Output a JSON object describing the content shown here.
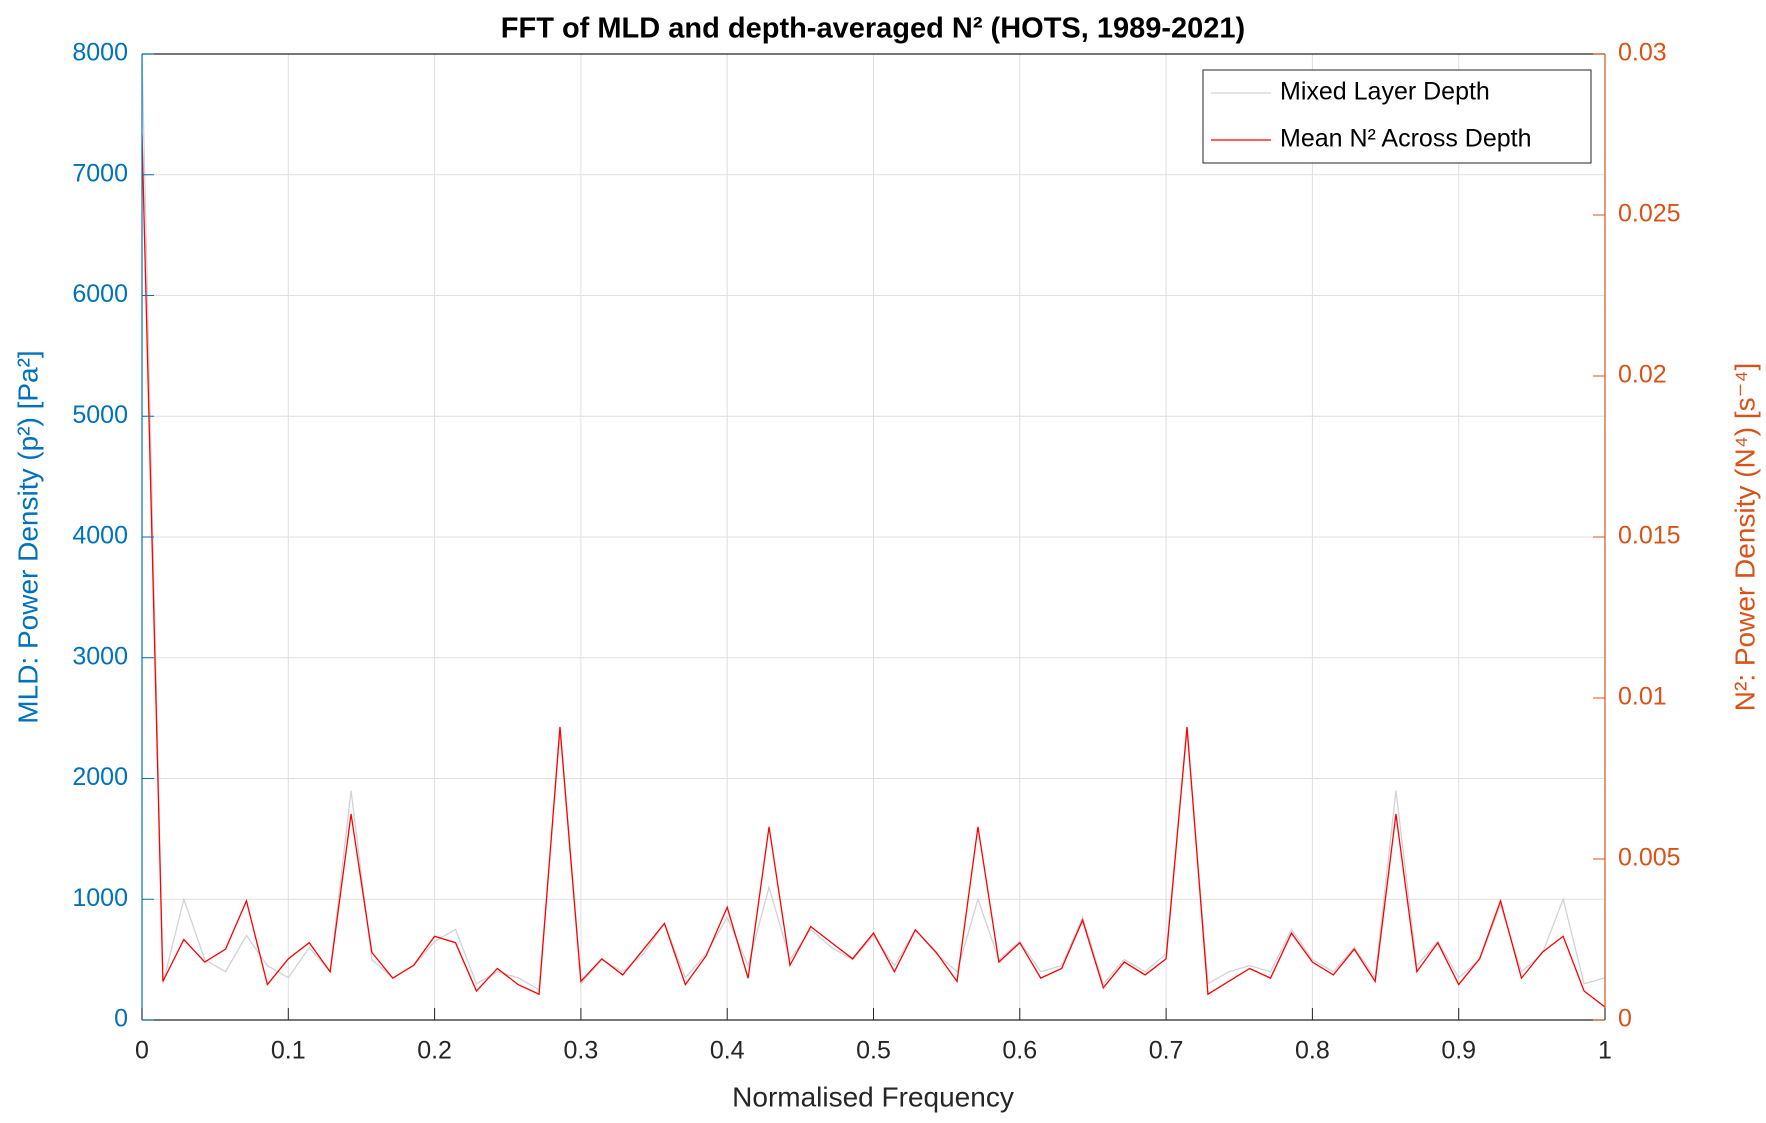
{
  "chart_data": {
    "type": "line",
    "title": "FFT of MLD and depth-averaged N² (HOTS, 1989-2021)",
    "x_label": "Normalised Frequency",
    "y_label": "MLD: Power Density (p²) [Pa²]",
    "y2_label": "N²: Power Density (N⁴) [s⁻⁴]",
    "x": [
      0,
      0.0143,
      0.0286,
      0.0429,
      0.0571,
      0.0714,
      0.0857,
      0.1,
      0.1143,
      0.1286,
      0.1429,
      0.1571,
      0.1714,
      0.1857,
      0.2,
      0.2143,
      0.2286,
      0.2429,
      0.2571,
      0.2714,
      0.2857,
      0.3,
      0.3143,
      0.3286,
      0.3429,
      0.3571,
      0.3714,
      0.3857,
      0.4,
      0.4143,
      0.4286,
      0.4429,
      0.4571,
      0.4714,
      0.4857,
      0.5,
      0.5143,
      0.5286,
      0.5429,
      0.5571,
      0.5714,
      0.5857,
      0.6,
      0.6143,
      0.6286,
      0.6429,
      0.6571,
      0.6714,
      0.6857,
      0.7,
      0.7143,
      0.7286,
      0.7429,
      0.7571,
      0.7714,
      0.7857,
      0.8,
      0.8143,
      0.8286,
      0.8429,
      0.8571,
      0.8714,
      0.8857,
      0.9,
      0.9143,
      0.9286,
      0.9429,
      0.9571,
      0.9714,
      0.9857,
      1
    ],
    "series": [
      {
        "name": "Mixed Layer Depth",
        "color": "#cfd3d9",
        "axis": "y",
        "values": [
          8000,
          300,
          1000,
          500,
          400,
          700,
          450,
          350,
          600,
          400,
          1900,
          500,
          350,
          450,
          650,
          750,
          300,
          400,
          350,
          250,
          2400,
          300,
          500,
          400,
          550,
          800,
          350,
          550,
          850,
          450,
          1100,
          500,
          750,
          600,
          500,
          700,
          450,
          750,
          550,
          400,
          1000,
          500,
          650,
          400,
          450,
          850,
          300,
          500,
          400,
          550,
          2400,
          300,
          400,
          450,
          400,
          750,
          500,
          400,
          600,
          350,
          1900,
          450,
          650,
          350,
          500,
          950,
          400,
          550,
          1000,
          300,
          350
        ]
      },
      {
        "name": "Mean N² Across Depth",
        "color": "#ff0000",
        "axis": "y2",
        "values": [
          0.0275,
          0.0012,
          0.0025,
          0.0018,
          0.0022,
          0.0037,
          0.0011,
          0.0019,
          0.0024,
          0.0015,
          0.0064,
          0.0021,
          0.0013,
          0.0017,
          0.0026,
          0.0024,
          0.0009,
          0.0016,
          0.0011,
          0.0008,
          0.0091,
          0.0012,
          0.0019,
          0.0014,
          0.0022,
          0.003,
          0.0011,
          0.002,
          0.0035,
          0.0013,
          0.006,
          0.0017,
          0.0029,
          0.0024,
          0.0019,
          0.0027,
          0.0015,
          0.0028,
          0.0021,
          0.0012,
          0.006,
          0.0018,
          0.0024,
          0.0013,
          0.0016,
          0.0031,
          0.001,
          0.0018,
          0.0014,
          0.0019,
          0.0091,
          0.0008,
          0.0012,
          0.0016,
          0.0013,
          0.0027,
          0.0018,
          0.0014,
          0.0022,
          0.0012,
          0.0064,
          0.0015,
          0.0024,
          0.0011,
          0.0019,
          0.0037,
          0.0013,
          0.0021,
          0.0026,
          0.0009,
          0.0004
        ]
      }
    ],
    "xlim": [
      0,
      1
    ],
    "xticks": [
      0,
      0.1,
      0.2,
      0.3,
      0.4,
      0.5,
      0.6,
      0.7,
      0.8,
      0.9,
      1
    ],
    "ylim": [
      0,
      8000
    ],
    "yticks": [
      0,
      1000,
      2000,
      3000,
      4000,
      5000,
      6000,
      7000,
      8000
    ],
    "y2lim": [
      0,
      0.03
    ],
    "y2ticks": [
      0,
      0.005,
      0.01,
      0.015,
      0.02,
      0.025,
      0.03
    ],
    "y_axis_color": "#0072bd",
    "y2_axis_color": "#d95319",
    "grid": true,
    "legend": "upper right"
  }
}
